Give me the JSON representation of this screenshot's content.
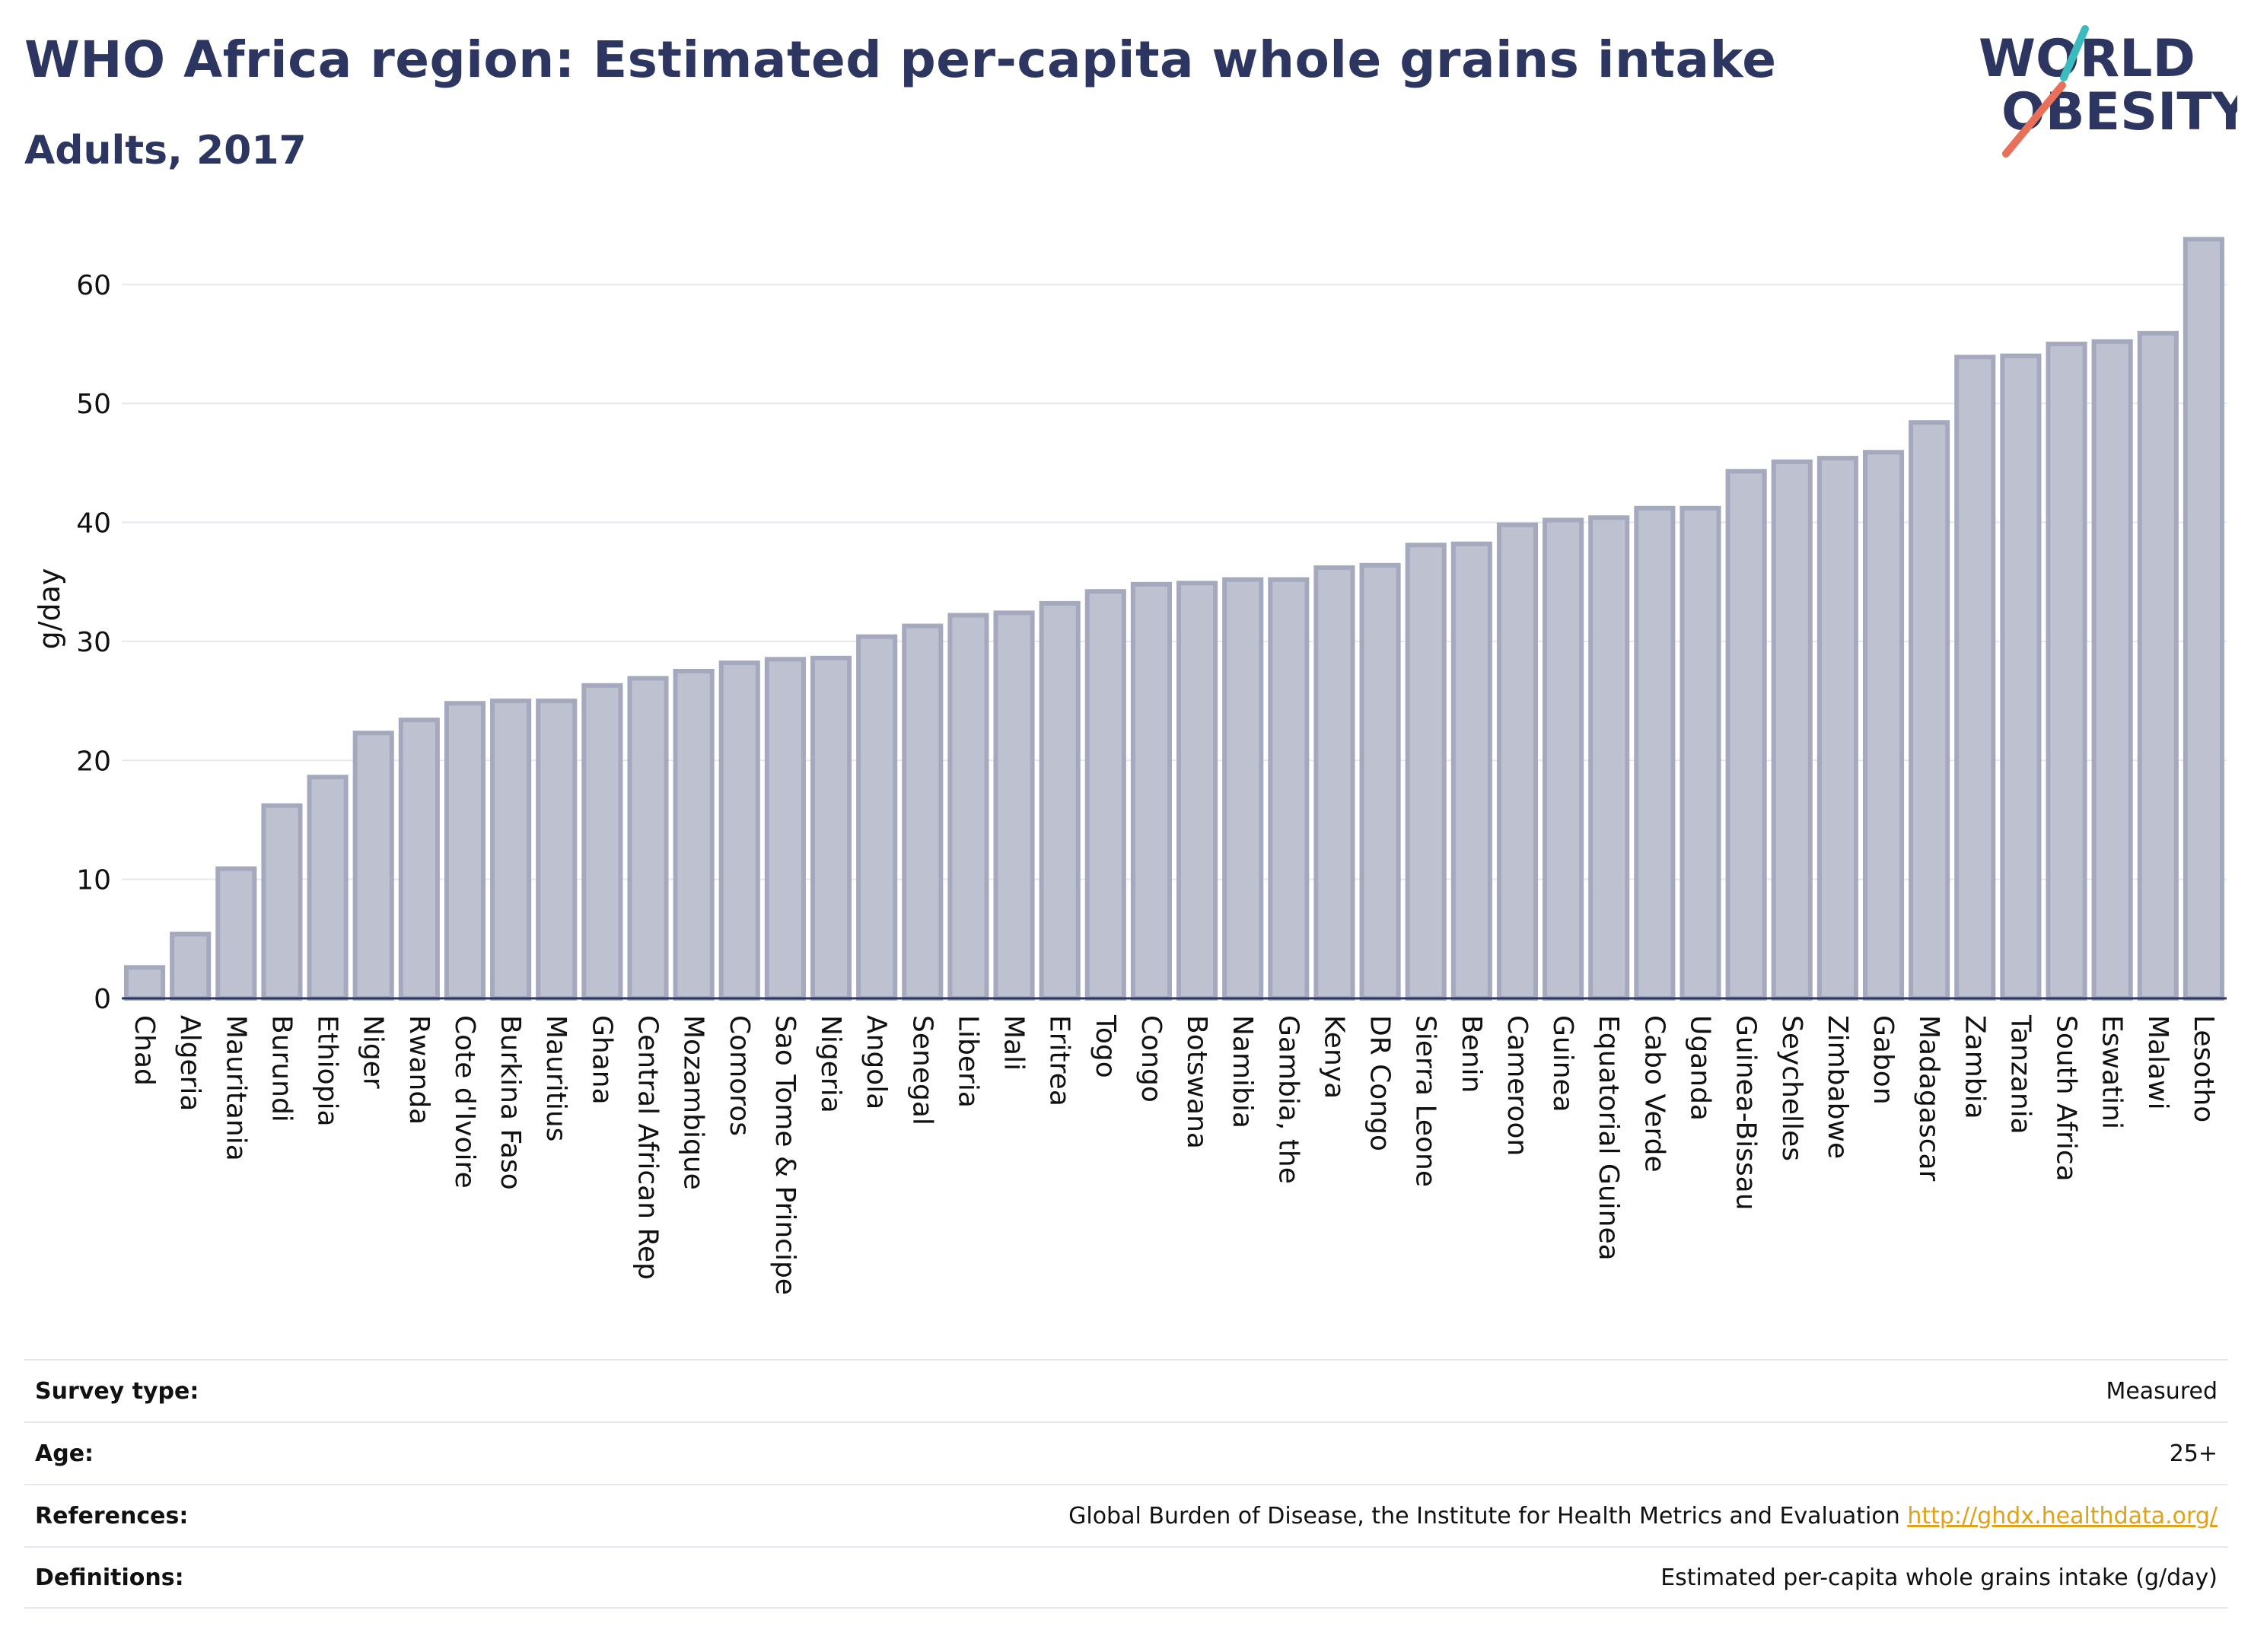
{
  "header": {
    "title": "WHO Africa region: Estimated per-capita whole grains intake",
    "subtitle": "Adults, 2017"
  },
  "logo": {
    "line1": "WORLD",
    "line2": "OBESITY",
    "colors": {
      "text": "#2c3660",
      "slash_teal": "#3bbcbc",
      "slash_coral": "#e8705a"
    }
  },
  "chart_data": {
    "type": "bar",
    "title": "WHO Africa region: Estimated per-capita whole grains intake",
    "subtitle": "Adults, 2017",
    "xlabel": "",
    "ylabel": "g/day",
    "ylim": [
      0,
      66
    ],
    "yticks": [
      0,
      10,
      20,
      30,
      40,
      50,
      60
    ],
    "grid": true,
    "legend": "none",
    "bar_color": "#bec2d0",
    "bar_border": "#a4a9be",
    "categories": [
      "Chad",
      "Algeria",
      "Mauritania",
      "Burundi",
      "Ethiopia",
      "Niger",
      "Rwanda",
      "Cote d'Ivoire",
      "Burkina Faso",
      "Mauritius",
      "Ghana",
      "Central African Rep",
      "Mozambique",
      "Comoros",
      "Sao Tome & Principe",
      "Nigeria",
      "Angola",
      "Senegal",
      "Liberia",
      "Mali",
      "Eritrea",
      "Togo",
      "Congo",
      "Botswana",
      "Namibia",
      "Gambia, the",
      "Kenya",
      "DR Congo",
      "Sierra Leone",
      "Benin",
      "Cameroon",
      "Guinea",
      "Equatorial Guinea",
      "Cabo Verde",
      "Uganda",
      "Guinea-Bissau",
      "Seychelles",
      "Zimbabwe",
      "Gabon",
      "Madagascar",
      "Zambia",
      "Tanzania",
      "South Africa",
      "Eswatini",
      "Malawi",
      "Lesotho"
    ],
    "values": [
      2.6,
      5.4,
      10.9,
      16.2,
      18.6,
      22.3,
      23.4,
      24.8,
      25.0,
      25.0,
      26.3,
      26.9,
      27.5,
      28.2,
      28.5,
      28.6,
      30.4,
      31.3,
      32.2,
      32.4,
      33.2,
      34.2,
      34.8,
      34.9,
      35.2,
      35.2,
      36.2,
      36.4,
      38.1,
      38.2,
      39.8,
      40.2,
      40.4,
      41.2,
      41.2,
      44.3,
      45.1,
      45.4,
      45.9,
      48.4,
      53.9,
      54.0,
      55.0,
      55.2,
      55.9,
      63.8
    ]
  },
  "meta": [
    {
      "label": "Survey type:",
      "value": "Measured"
    },
    {
      "label": "Age:",
      "value": "25+"
    },
    {
      "label": "References:",
      "value": "Global Burden of Disease, the Institute for Health Metrics and Evaluation",
      "link": "http://ghdx.healthdata.org/"
    },
    {
      "label": "Definitions:",
      "value": "Estimated per-capita whole grains intake (g/day)"
    }
  ]
}
